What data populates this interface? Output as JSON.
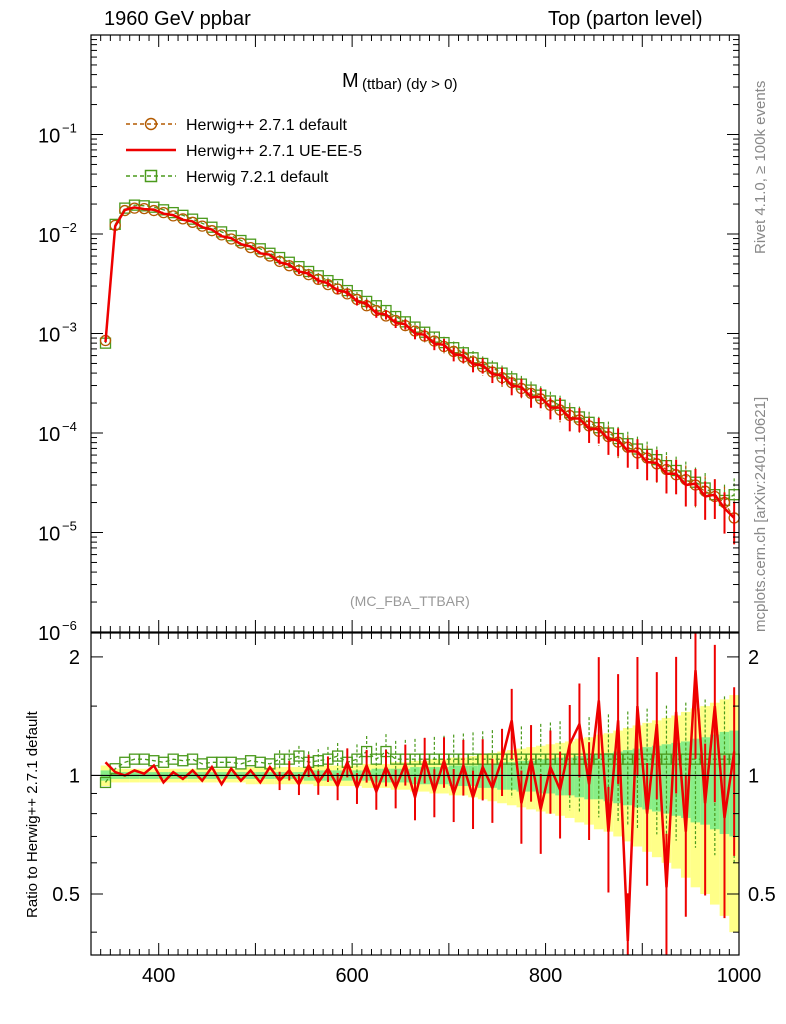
{
  "header": {
    "left_title": "1960 GeV ppbar",
    "right_title": "Top (parton level)"
  },
  "side_labels": {
    "rivet": "Rivet 4.1.0, ≥ 100k events",
    "mcplots": "mcplots.cern.ch [arXiv:2401.10621]"
  },
  "colors": {
    "herwig_default": "#b35a00",
    "herwig_ueee5": "#ee0000",
    "herwig7": "#4a9a1c",
    "band_yellow": "#ffff88",
    "band_green": "#88ee88"
  },
  "chart_data": [
    {
      "type": "line",
      "title": "M",
      "title_sub": "(ttbar) (dy > 0)",
      "watermark": "(MC_FBA_TTBAR)",
      "xlabel": "",
      "ylabel": "",
      "xlim": [
        330,
        1000
      ],
      "ylim": [
        1e-06,
        1
      ],
      "yscale": "log",
      "yticks": [
        "10",
        "10",
        "10",
        "10",
        "10",
        "10"
      ],
      "ytick_exponents": [
        "−6",
        "−5",
        "−4",
        "−3",
        "−2",
        "−1"
      ],
      "legend_position": "top-left",
      "x": [
        345,
        355,
        365,
        375,
        385,
        395,
        405,
        415,
        425,
        435,
        445,
        455,
        465,
        475,
        485,
        495,
        505,
        515,
        525,
        535,
        545,
        555,
        565,
        575,
        585,
        595,
        605,
        615,
        625,
        635,
        645,
        655,
        665,
        675,
        685,
        695,
        705,
        715,
        725,
        735,
        745,
        755,
        765,
        775,
        785,
        795,
        805,
        815,
        825,
        835,
        845,
        855,
        865,
        875,
        885,
        895,
        905,
        915,
        925,
        935,
        945,
        955,
        965,
        975,
        985,
        995
      ],
      "series": [
        {
          "name": "Herwig++ 2.7.1 default",
          "style": "dashed-circle",
          "values": [
            0.00085,
            0.0122,
            0.0172,
            0.0182,
            0.018,
            0.0172,
            0.0164,
            0.0152,
            0.0142,
            0.0131,
            0.012,
            0.0108,
            0.0098,
            0.0089,
            0.0081,
            0.0073,
            0.0066,
            0.006,
            0.0053,
            0.0048,
            0.0043,
            0.0039,
            0.0035,
            0.0031,
            0.0028,
            0.0025,
            0.0022,
            0.0019,
            0.0017,
            0.0015,
            0.00135,
            0.0012,
            0.00106,
            0.00094,
            0.00084,
            0.00074,
            0.00066,
            0.00058,
            0.00052,
            0.00046,
            0.00041,
            0.00036,
            0.00032,
            0.00028,
            0.00025,
            0.00022,
            0.00019,
            0.00017,
            0.00015,
            0.000135,
            0.000118,
            0.000104,
            9.2e-05,
            8.1e-05,
            7.2e-05,
            6.3e-05,
            5.6e-05,
            4.9e-05,
            4.3e-05,
            3.8e-05,
            3.4e-05,
            3e-05,
            2.6e-05,
            2.3e-05,
            2e-05,
            1.4e-05
          ]
        },
        {
          "name": "Herwig++ 2.7.1 UE-EE-5",
          "style": "solid",
          "values": [
            0.00082,
            0.012,
            0.0175,
            0.0185,
            0.0178,
            0.0176,
            0.016,
            0.0155,
            0.0139,
            0.0134,
            0.0117,
            0.0111,
            0.0095,
            0.0091,
            0.0079,
            0.0075,
            0.0064,
            0.0062,
            0.0052,
            0.0049,
            0.0042,
            0.004,
            0.0034,
            0.0032,
            0.0027,
            0.0026,
            0.0021,
            0.002,
            0.0016,
            0.00155,
            0.00128,
            0.00124,
            0.001,
            0.00097,
            0.00079,
            0.00077,
            0.00062,
            0.0006,
            0.00049,
            0.00048,
            0.00039,
            0.00038,
            0.0003,
            0.00029,
            0.00023,
            0.00023,
            0.00018,
            0.00018,
            0.00014,
            0.00014,
            0.00011,
            0.00011,
            8.6e-05,
            8.5e-05,
            6.6e-05,
            6.5e-05,
            5.1e-05,
            5e-05,
            3.9e-05,
            3.9e-05,
            3e-05,
            3.1e-05,
            2.3e-05,
            2.4e-05,
            1.75e-05,
            1.4e-05
          ]
        },
        {
          "name": "Herwig 7.2.1 default",
          "style": "dashed-square",
          "values": [
            0.0008,
            0.0125,
            0.0182,
            0.0195,
            0.0192,
            0.0186,
            0.0175,
            0.0164,
            0.0154,
            0.0141,
            0.0128,
            0.0117,
            0.0105,
            0.0096,
            0.0086,
            0.0079,
            0.0071,
            0.0064,
            0.0058,
            0.0052,
            0.0047,
            0.0042,
            0.0038,
            0.0034,
            0.0031,
            0.0027,
            0.0024,
            0.0021,
            0.0019,
            0.0017,
            0.00148,
            0.00131,
            0.00116,
            0.00103,
            0.00092,
            0.00081,
            0.00072,
            0.00064,
            0.00057,
            0.0005,
            0.00045,
            0.0004,
            0.00035,
            0.00031,
            0.00027,
            0.00024,
            0.00021,
            0.00019,
            0.00016,
            0.000145,
            0.000128,
            0.000113,
            0.0001,
            8.8e-05,
            7.8e-05,
            6.9e-05,
            6.1e-05,
            5.4e-05,
            4.7e-05,
            4.2e-05,
            3.7e-05,
            3.2e-05,
            2.8e-05,
            2.4e-05,
            2.1e-05,
            2.4e-05
          ]
        }
      ]
    },
    {
      "type": "line",
      "title": "",
      "xlabel": "",
      "ylabel": "Ratio to Herwig++ 2.7.1 default",
      "xlim": [
        330,
        1000
      ],
      "ylim": [
        0.35,
        2.3
      ],
      "yscale": "log",
      "xticks": [
        "400",
        "600",
        "800",
        "1000"
      ],
      "yticks": [
        "0.5",
        "1",
        "2"
      ],
      "x": [
        345,
        355,
        365,
        375,
        385,
        395,
        405,
        415,
        425,
        435,
        445,
        455,
        465,
        475,
        485,
        495,
        505,
        515,
        525,
        535,
        545,
        555,
        565,
        575,
        585,
        595,
        605,
        615,
        625,
        635,
        645,
        655,
        665,
        675,
        685,
        695,
        705,
        715,
        725,
        735,
        745,
        755,
        765,
        775,
        785,
        795,
        805,
        815,
        825,
        835,
        845,
        855,
        865,
        875,
        885,
        895,
        905,
        915,
        925,
        935,
        945,
        955,
        965,
        975,
        985,
        995
      ],
      "band_inner_halfwidth": [
        0.03,
        0.02,
        0.02,
        0.02,
        0.02,
        0.02,
        0.02,
        0.02,
        0.02,
        0.02,
        0.02,
        0.02,
        0.02,
        0.02,
        0.02,
        0.02,
        0.02,
        0.02,
        0.02,
        0.02,
        0.02,
        0.03,
        0.03,
        0.03,
        0.03,
        0.03,
        0.03,
        0.03,
        0.04,
        0.04,
        0.04,
        0.04,
        0.05,
        0.05,
        0.05,
        0.05,
        0.06,
        0.06,
        0.06,
        0.07,
        0.07,
        0.08,
        0.08,
        0.09,
        0.09,
        0.1,
        0.1,
        0.11,
        0.11,
        0.12,
        0.13,
        0.13,
        0.14,
        0.15,
        0.16,
        0.17,
        0.18,
        0.19,
        0.2,
        0.21,
        0.22,
        0.24,
        0.25,
        0.27,
        0.29,
        0.3
      ],
      "band_outer_halfwidth": [
        0.06,
        0.04,
        0.04,
        0.04,
        0.04,
        0.04,
        0.04,
        0.04,
        0.04,
        0.04,
        0.04,
        0.04,
        0.04,
        0.04,
        0.04,
        0.05,
        0.05,
        0.05,
        0.05,
        0.05,
        0.05,
        0.05,
        0.06,
        0.06,
        0.06,
        0.06,
        0.06,
        0.07,
        0.07,
        0.07,
        0.08,
        0.08,
        0.09,
        0.09,
        0.1,
        0.1,
        0.11,
        0.11,
        0.12,
        0.13,
        0.14,
        0.15,
        0.16,
        0.17,
        0.18,
        0.19,
        0.2,
        0.21,
        0.22,
        0.24,
        0.25,
        0.27,
        0.28,
        0.3,
        0.32,
        0.34,
        0.36,
        0.38,
        0.4,
        0.42,
        0.45,
        0.48,
        0.5,
        0.53,
        0.56,
        0.6
      ],
      "series": [
        {
          "name": "Herwig++ 2.7.1 default",
          "values": [
            1,
            1,
            1,
            1,
            1,
            1,
            1,
            1,
            1,
            1,
            1,
            1,
            1,
            1,
            1,
            1,
            1,
            1,
            1,
            1,
            1,
            1,
            1,
            1,
            1,
            1,
            1,
            1,
            1,
            1,
            1,
            1,
            1,
            1,
            1,
            1,
            1,
            1,
            1,
            1,
            1,
            1,
            1,
            1,
            1,
            1,
            1,
            1,
            1,
            1,
            1,
            1,
            1,
            1,
            1,
            1,
            1,
            1,
            1,
            1,
            1,
            1,
            1,
            1,
            1,
            1
          ]
        },
        {
          "name": "Herwig++ 2.7.1 UE-EE-5",
          "values": [
            1.08,
            1.02,
            1.0,
            1.03,
            1.01,
            1.06,
            0.96,
            1.02,
            0.98,
            1.03,
            0.97,
            1.05,
            0.95,
            1.04,
            0.97,
            1.03,
            0.96,
            1.05,
            0.97,
            1.03,
            0.95,
            1.06,
            0.96,
            1.04,
            0.94,
            1.08,
            0.93,
            1.06,
            0.91,
            1.05,
            0.93,
            1.07,
            0.88,
            1.1,
            0.91,
            1.09,
            0.9,
            1.06,
            0.88,
            1.05,
            0.93,
            1.1,
            1.38,
            0.85,
            1.1,
            0.82,
            1.05,
            0.92,
            1.2,
            1.35,
            0.95,
            1.55,
            0.72,
            1.38,
            0.38,
            1.5,
            0.8,
            1.35,
            0.52,
            1.45,
            0.72,
            1.85,
            0.85,
            1.5,
            0.78,
            1.15
          ]
        },
        {
          "name": "Herwig 7.2.1 default",
          "values": [
            0.96,
            1.04,
            1.08,
            1.1,
            1.1,
            1.09,
            1.08,
            1.1,
            1.09,
            1.1,
            1.07,
            1.08,
            1.08,
            1.08,
            1.07,
            1.09,
            1.08,
            1.07,
            1.1,
            1.1,
            1.12,
            1.08,
            1.09,
            1.1,
            1.12,
            1.08,
            1.1,
            1.15,
            1.1,
            1.15,
            1.1,
            1.1,
            1.1,
            1.1,
            1.1,
            1.1,
            1.1,
            1.1,
            1.1,
            1.1,
            1.1,
            1.1,
            1.1,
            1.1,
            1.1,
            1.1,
            1.1,
            1.1,
            1.1,
            1.1,
            1.1,
            1.1,
            1.1,
            1.1,
            1.1,
            1.1,
            1.1,
            1.1,
            1.1,
            1.1,
            1.1,
            1.1,
            1.1,
            1.1,
            1.1,
            1.1
          ]
        }
      ]
    }
  ]
}
